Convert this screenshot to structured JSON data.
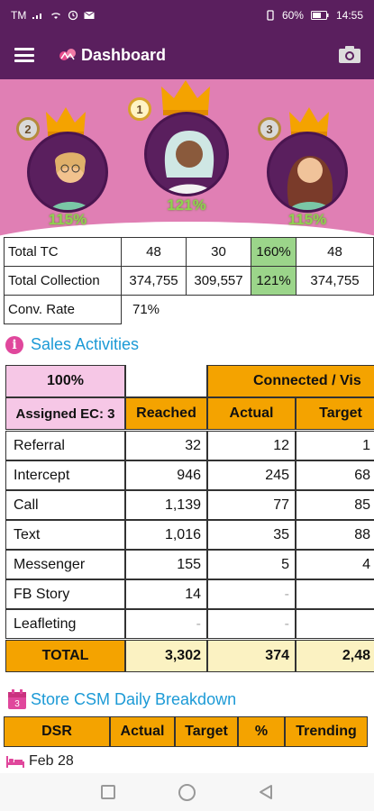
{
  "status_bar": {
    "carrier": "TM",
    "battery": "60%",
    "time": "14:55"
  },
  "app_bar": {
    "title": "Dashboard"
  },
  "leaders": [
    {
      "rank": "2",
      "percent": "115%"
    },
    {
      "rank": "1",
      "percent": "121%"
    },
    {
      "rank": "3",
      "percent": "115%"
    }
  ],
  "totals": {
    "rows": [
      {
        "label": "Total TC",
        "values": [
          "48",
          "30",
          "160%",
          "48"
        ]
      },
      {
        "label": "Total Collection",
        "values": [
          "374,755",
          "309,557",
          "121%",
          "374,755"
        ]
      },
      {
        "label": "Conv. Rate",
        "values": [
          "71%"
        ]
      }
    ]
  },
  "sales_activities": {
    "title": "Sales Activities",
    "percent_cell": "100%",
    "group_header": "Connected / Vis",
    "assigned_label": "Assigned EC:  3",
    "columns": [
      "Reached",
      "Actual",
      "Target"
    ],
    "rows": [
      {
        "label": "Referral",
        "reached": "32",
        "actual": "12",
        "target": "1"
      },
      {
        "label": "Intercept",
        "reached": "946",
        "actual": "245",
        "target": "68"
      },
      {
        "label": "Call",
        "reached": "1,139",
        "actual": "77",
        "target": "85"
      },
      {
        "label": "Text",
        "reached": "1,016",
        "actual": "35",
        "target": "88"
      },
      {
        "label": "Messenger",
        "reached": "155",
        "actual": "5",
        "target": "4"
      },
      {
        "label": "FB Story",
        "reached": "14",
        "actual": "-",
        "target": ""
      },
      {
        "label": "Leafleting",
        "reached": "-",
        "actual": "-",
        "target": ""
      }
    ],
    "total": {
      "label": "TOTAL",
      "reached": "3,302",
      "actual": "374",
      "target": "2,48"
    }
  },
  "store_breakdown": {
    "title": "Store CSM Daily Breakdown",
    "calendar_number": "3",
    "columns": [
      "DSR",
      "Actual",
      "Target",
      "%",
      "Trending"
    ],
    "first_date": "Feb 28"
  },
  "colors": {
    "primary": "#5a1f5e",
    "hero": "#e07fb4",
    "accent_orange": "#f4a300",
    "accent_pink": "#f6c7e6",
    "highlight_green": "#9bd58a",
    "link_blue": "#1c9ad6"
  },
  "icons": [
    "menu-icon",
    "camera-icon",
    "info-icon",
    "calendar-icon",
    "bed-icon",
    "crown-icon",
    "medal-icon"
  ]
}
